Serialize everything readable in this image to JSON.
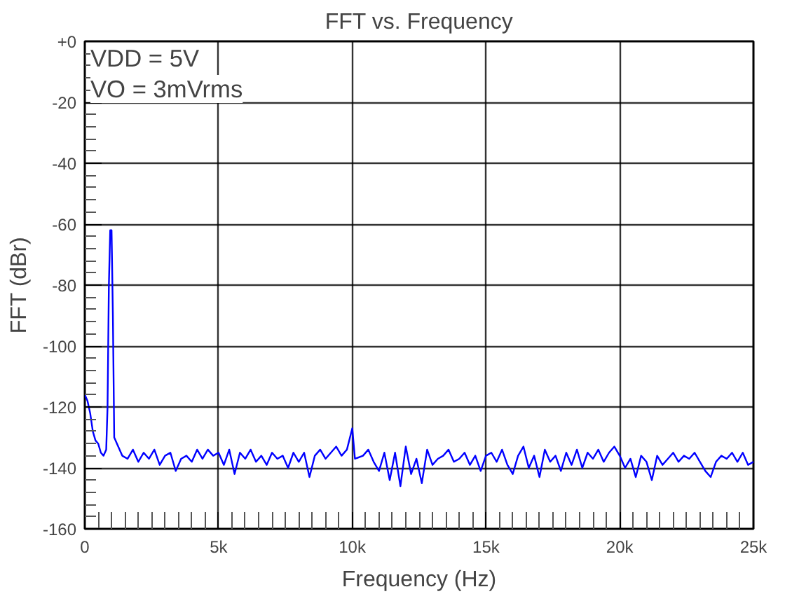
{
  "chart_data": {
    "type": "line",
    "title": "FFT vs. Frequency",
    "xlabel": "Frequency (Hz)",
    "ylabel": "FFT (dBr)",
    "annotations": [
      "VDD = 5V",
      "VO = 3mVrms"
    ],
    "x": [
      0,
      100,
      200,
      300,
      400,
      500,
      600,
      700,
      800,
      850,
      900,
      950,
      1000,
      1050,
      1100,
      1200,
      1400,
      1600,
      1800,
      2000,
      2200,
      2400,
      2600,
      2800,
      3000,
      3200,
      3400,
      3600,
      3800,
      4000,
      4200,
      4400,
      4600,
      4800,
      5000,
      5200,
      5400,
      5600,
      5800,
      6000,
      6200,
      6400,
      6600,
      6800,
      7000,
      7200,
      7400,
      7600,
      7800,
      8000,
      8200,
      8400,
      8600,
      8800,
      9000,
      9200,
      9400,
      9600,
      9800,
      10000,
      10100,
      10400,
      10600,
      10800,
      11000,
      11200,
      11400,
      11600,
      11800,
      12000,
      12200,
      12400,
      12600,
      12800,
      13000,
      13200,
      13400,
      13600,
      13800,
      14000,
      14200,
      14400,
      14600,
      14800,
      15000,
      15200,
      15400,
      15600,
      15800,
      16000,
      16200,
      16400,
      16600,
      16800,
      17000,
      17200,
      17400,
      17600,
      17800,
      18000,
      18200,
      18400,
      18600,
      18800,
      19000,
      19200,
      19400,
      19600,
      19800,
      20000,
      20200,
      20400,
      20600,
      20800,
      21000,
      21200,
      21400,
      21600,
      21800,
      22000,
      22200,
      22400,
      22600,
      22800,
      23000,
      23200,
      23400,
      23600,
      23800,
      24000,
      24200,
      24400,
      24600,
      24800,
      25000
    ],
    "series": [
      {
        "color": "#0000ff",
        "values": [
          -116,
          -118,
          -122,
          -128,
          -131,
          -132,
          -135,
          -136,
          -134,
          -120,
          -80,
          -62,
          -62,
          -90,
          -130,
          -132,
          -136,
          -137,
          -134,
          -138,
          -135,
          -137,
          -134,
          -139,
          -136,
          -135,
          -141,
          -137,
          -136,
          -138,
          -134,
          -137,
          -134,
          -136,
          -135,
          -139,
          -134,
          -142,
          -135,
          -137,
          -134,
          -138,
          -136,
          -139,
          -135,
          -137,
          -136,
          -140,
          -135,
          -138,
          -135,
          -143,
          -136,
          -134,
          -137,
          -135,
          -133,
          -136,
          -134,
          -127,
          -137,
          -136,
          -134,
          -138,
          -141,
          -135,
          -144,
          -135,
          -146,
          -133,
          -142,
          -137,
          -145,
          -134,
          -139,
          -137,
          -136,
          -134,
          -138,
          -137,
          -135,
          -139,
          -136,
          -141,
          -136,
          -135,
          -138,
          -134,
          -139,
          -142,
          -136,
          -133,
          -140,
          -136,
          -143,
          -134,
          -138,
          -136,
          -141,
          -135,
          -139,
          -134,
          -140,
          -135,
          -137,
          -134,
          -138,
          -135,
          -133,
          -136,
          -140,
          -137,
          -143,
          -136,
          -138,
          -144,
          -136,
          -139,
          -137,
          -135,
          -138,
          -136,
          -137,
          -135,
          -138,
          -141,
          -143,
          -138,
          -136,
          -137,
          -135,
          -138,
          -135,
          -139,
          -138
        ]
      }
    ],
    "xlim": [
      0,
      25000
    ],
    "ylim": [
      -160,
      0
    ],
    "xticks": [
      0,
      {
        "value": 5000,
        "label": "5k"
      },
      {
        "value": 10000,
        "label": "10k"
      },
      {
        "value": 15000,
        "label": "15k"
      },
      {
        "value": 20000,
        "label": "20k"
      },
      {
        "value": 25000,
        "label": "25k"
      }
    ],
    "yticks": [
      -160,
      -140,
      -120,
      -100,
      -80,
      -60,
      -40,
      -20,
      {
        "value": 0,
        "label": "+0"
      }
    ],
    "grid": true,
    "line_style": "solid"
  }
}
